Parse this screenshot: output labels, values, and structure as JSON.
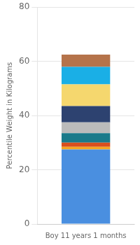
{
  "chart_data": {
    "type": "bar",
    "stacked": true,
    "categories": [
      "Boy 11 years 1 months"
    ],
    "series": [
      {
        "color": "#4A8FE0",
        "values": [
          27.5
        ]
      },
      {
        "color": "#F5A623",
        "values": [
          1.0
        ]
      },
      {
        "color": "#D94F1E",
        "values": [
          1.5
        ]
      },
      {
        "color": "#1A7A8A",
        "values": [
          3.5
        ]
      },
      {
        "color": "#BBBBBB",
        "values": [
          4.0
        ]
      },
      {
        "color": "#2D4270",
        "values": [
          6.0
        ]
      },
      {
        "color": "#F5D76E",
        "values": [
          8.0
        ]
      },
      {
        "color": "#1AAFE6",
        "values": [
          6.5
        ]
      },
      {
        "color": "#B5734A",
        "values": [
          4.5
        ]
      }
    ],
    "ylabel": "Percentile Weight in Kilograms",
    "ylim": [
      0,
      80
    ],
    "yticks": [
      0,
      20,
      40,
      60,
      80
    ],
    "grid": true
  }
}
